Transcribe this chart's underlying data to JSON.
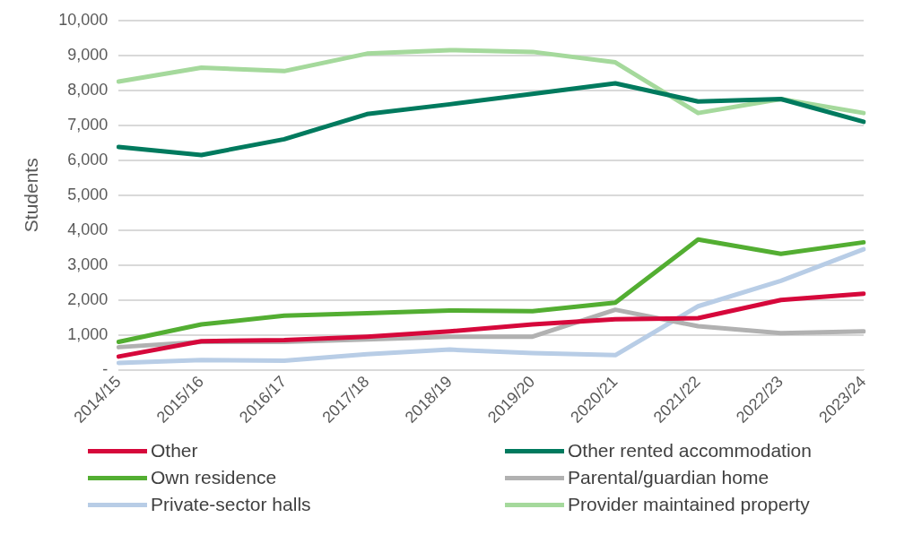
{
  "chart_data": {
    "type": "line",
    "ylabel": "Students",
    "categories": [
      "2014/15",
      "2015/16",
      "2016/17",
      "2017/18",
      "2018/19",
      "2019/20",
      "2020/21",
      "2021/22",
      "2022/23",
      "2023/24"
    ],
    "ylim": [
      0,
      10000
    ],
    "yticks": [
      {
        "value": 0,
        "label": "-"
      },
      {
        "value": 1000,
        "label": "1,000"
      },
      {
        "value": 2000,
        "label": "2,000"
      },
      {
        "value": 3000,
        "label": "3,000"
      },
      {
        "value": 4000,
        "label": "4,000"
      },
      {
        "value": 5000,
        "label": "5,000"
      },
      {
        "value": 6000,
        "label": "6,000"
      },
      {
        "value": 7000,
        "label": "7,000"
      },
      {
        "value": 8000,
        "label": "8,000"
      },
      {
        "value": 9000,
        "label": "9,000"
      },
      {
        "value": 10000,
        "label": "10,000"
      }
    ],
    "grid": "y",
    "legend": "bottom",
    "marker": "none",
    "line_style": "solid",
    "series": [
      {
        "name": "Other",
        "color": "#d6083b",
        "values": [
          380,
          820,
          850,
          950,
          1100,
          1300,
          1450,
          1480,
          2000,
          2180
        ]
      },
      {
        "name": "Other rented accommodation",
        "color": "#007a5e",
        "values": [
          6380,
          6150,
          6600,
          7320,
          7600,
          7900,
          8200,
          7680,
          7750,
          7100
        ]
      },
      {
        "name": "Own residence",
        "color": "#53ae32",
        "values": [
          800,
          1300,
          1550,
          1620,
          1700,
          1680,
          1920,
          3730,
          3320,
          3650
        ]
      },
      {
        "name": "Parental/guardian home",
        "color": "#b1b1b1",
        "values": [
          650,
          800,
          800,
          870,
          950,
          950,
          1720,
          1250,
          1050,
          1100
        ]
      },
      {
        "name": "Private-sector halls",
        "color": "#b8cde6",
        "values": [
          200,
          280,
          260,
          450,
          580,
          480,
          420,
          1820,
          2550,
          3450
        ]
      },
      {
        "name": "Provider maintained property",
        "color": "#a5d99c",
        "values": [
          8250,
          8650,
          8550,
          9050,
          9150,
          9100,
          8800,
          7350,
          7750,
          7350
        ]
      }
    ]
  }
}
